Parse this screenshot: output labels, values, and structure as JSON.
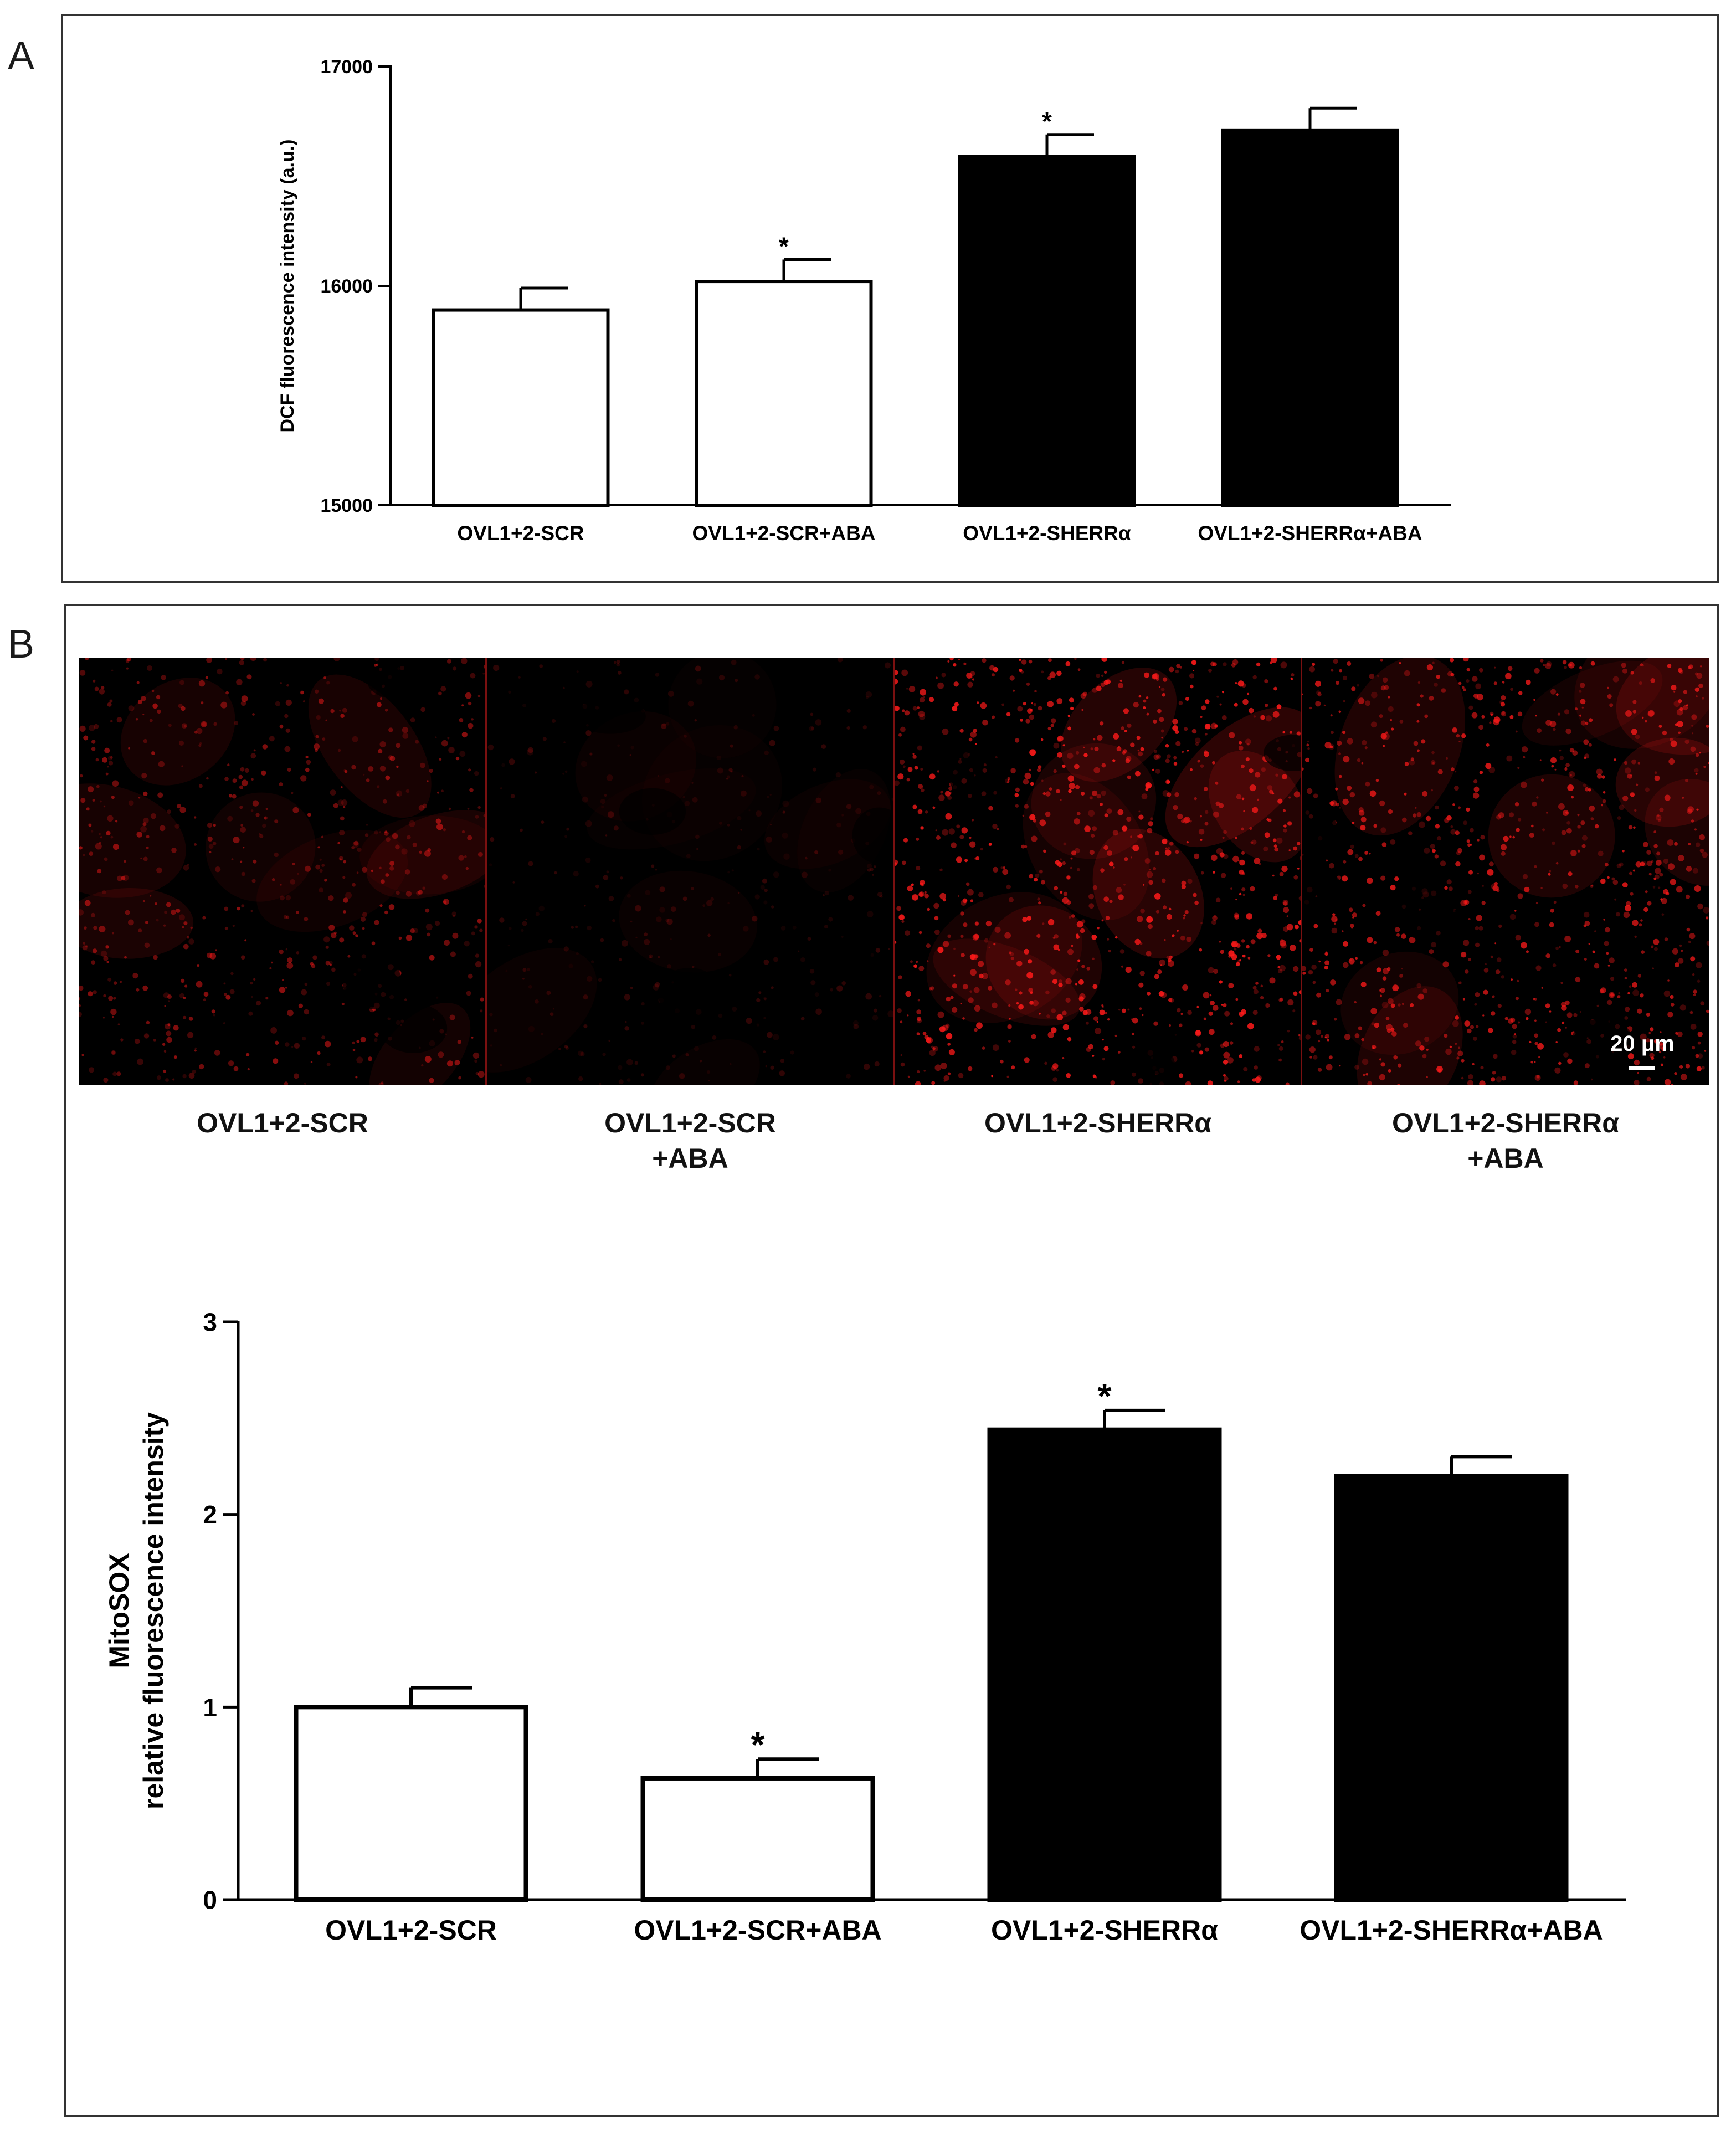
{
  "panels": {
    "a_letter": "A",
    "b_letter": "B"
  },
  "chart_data": [
    {
      "type": "bar",
      "categories": [
        "OVL1+2-SCR",
        "OVL1+2-SCR+ABA",
        "OVL1+2-SHERRα",
        "OVL1+2-SHERRα+ABA"
      ],
      "values": [
        15890,
        16020,
        16590,
        16710
      ],
      "errors": [
        100,
        100,
        100,
        100
      ],
      "significance": [
        "",
        "*",
        "*",
        ""
      ],
      "bar_fills": [
        "#ffffff",
        "#ffffff",
        "#000000",
        "#000000"
      ],
      "title": "",
      "xlabel": "",
      "ylabel": "DCF fluorescence intensity (a.u.)",
      "ylim": [
        15000,
        17000
      ],
      "yticks": [
        "15000",
        "16000",
        "17000"
      ],
      "grid": false
    },
    {
      "type": "bar",
      "categories": [
        "OVL1+2-SCR",
        "OVL1+2-SCR+ABA",
        "OVL1+2-SHERRα",
        "OVL1+2-SHERRα+ABA"
      ],
      "values": [
        1.0,
        0.63,
        2.44,
        2.2
      ],
      "errors": [
        0.1,
        0.1,
        0.1,
        0.1
      ],
      "significance": [
        "",
        "*",
        "*",
        ""
      ],
      "bar_fills": [
        "#ffffff",
        "#ffffff",
        "#000000",
        "#000000"
      ],
      "title": "",
      "xlabel": "",
      "ylabel_lines": [
        "MitoSOX",
        "relative fluorescence intensity"
      ],
      "ylim": [
        0,
        3
      ],
      "yticks": [
        "0",
        "1",
        "2",
        "3"
      ],
      "grid": false
    }
  ],
  "micrographs": {
    "stain_color": "#ff1a1a",
    "images": [
      {
        "label_lines": [
          "OVL1+2-SCR"
        ],
        "brightness": 0.55
      },
      {
        "label_lines": [
          "OVL1+2-SCR",
          "+ABA"
        ],
        "brightness": 0.2
      },
      {
        "label_lines": [
          "OVL1+2-SHERRα"
        ],
        "brightness": 0.9
      },
      {
        "label_lines": [
          "OVL1+2-SHERRα",
          "+ABA"
        ],
        "brightness": 0.8
      }
    ],
    "scale_bar_label": "20 μm"
  }
}
